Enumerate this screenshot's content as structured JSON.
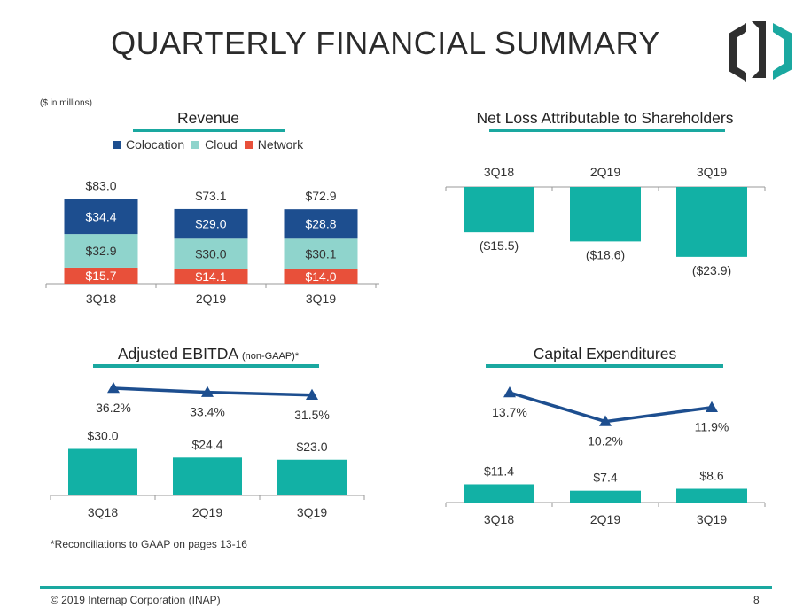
{
  "page": {
    "title": "QUARTERLY FINANCIAL SUMMARY",
    "units_note": "($ in millions)",
    "footnote": "*Reconciliations to GAAP on pages 13-16",
    "footer_text": "© 2019 Internap Corporation (INAP)",
    "page_number": "8",
    "accent_color": "#1aa8a0"
  },
  "chart_data": [
    {
      "id": "revenue",
      "type": "bar",
      "stacked": true,
      "title": "Revenue",
      "categories": [
        "3Q18",
        "2Q19",
        "3Q19"
      ],
      "series": [
        {
          "name": "Network",
          "color": "#e8503a",
          "values": [
            15.7,
            14.1,
            14.0
          ],
          "labels": [
            "$15.7",
            "$14.1",
            "$14.0"
          ]
        },
        {
          "name": "Cloud",
          "color": "#8fd4cc",
          "values": [
            32.9,
            30.0,
            30.1
          ],
          "labels": [
            "$32.9",
            "$30.0",
            "$30.1"
          ]
        },
        {
          "name": "Colocation",
          "color": "#1d4e8f",
          "values": [
            34.4,
            29.0,
            28.8
          ],
          "labels": [
            "$34.4",
            "$29.0",
            "$28.8"
          ]
        }
      ],
      "legend": [
        "Colocation",
        "Cloud",
        "Network"
      ],
      "legend_colors": [
        "#1d4e8f",
        "#8fd4cc",
        "#e8503a"
      ],
      "totals": [
        83.0,
        73.1,
        72.9
      ],
      "total_labels": [
        "$83.0",
        "$73.1",
        "$72.9"
      ],
      "ylim": [
        0,
        90
      ]
    },
    {
      "id": "netloss",
      "type": "bar",
      "title": "Net Loss Attributable to Shareholders",
      "categories": [
        "3Q18",
        "2Q19",
        "3Q19"
      ],
      "values": [
        -15.5,
        -18.6,
        -23.9
      ],
      "labels": [
        "($15.5)",
        "($18.6)",
        "($23.9)"
      ],
      "color": "#12b1a5",
      "ylim": [
        -25,
        0
      ]
    },
    {
      "id": "ebitda",
      "type": "bar+line",
      "title": "Adjusted EBITDA",
      "title_suffix": "(non-GAAP)*",
      "categories": [
        "3Q18",
        "2Q19",
        "3Q19"
      ],
      "values": [
        30.0,
        24.4,
        23.0
      ],
      "labels": [
        "$30.0",
        "$24.4",
        "$23.0"
      ],
      "bar_color": "#12b1a5",
      "line_values": [
        36.2,
        33.4,
        31.5
      ],
      "line_labels": [
        "36.2%",
        "33.4%",
        "31.5%"
      ],
      "line_color": "#1d4e8f"
    },
    {
      "id": "capex",
      "type": "bar+line",
      "title": "Capital Expenditures",
      "categories": [
        "3Q18",
        "2Q19",
        "3Q19"
      ],
      "values": [
        11.4,
        7.4,
        8.6
      ],
      "labels": [
        "$11.4",
        "$7.4",
        "$8.6"
      ],
      "bar_color": "#12b1a5",
      "line_values": [
        13.7,
        10.2,
        11.9
      ],
      "line_labels": [
        "13.7%",
        "10.2%",
        "11.9%"
      ],
      "line_color": "#1d4e8f"
    }
  ]
}
